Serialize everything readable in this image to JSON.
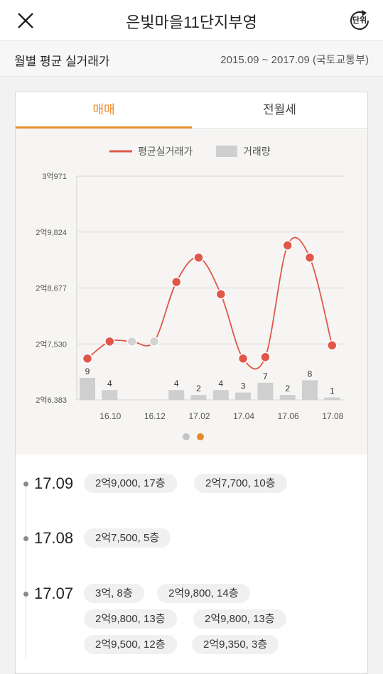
{
  "header": {
    "title": "은빛마을11단지부영",
    "unit_label": "단위"
  },
  "subheader": {
    "title": "월별 평균 실거래가",
    "range": "2015.09 ~ 2017.09 (국토교통부)"
  },
  "tabs": [
    {
      "label": "매매",
      "active": true
    },
    {
      "label": "전월세",
      "active": false
    }
  ],
  "colors": {
    "accent": "#e98a2b",
    "line": "#e0574a",
    "bar": "#cfcfcf",
    "inactive_point": "#d3d3d3"
  },
  "chart_data": {
    "type": "line",
    "legend": [
      {
        "name": "평균실거래가",
        "kind": "line"
      },
      {
        "name": "거래량",
        "kind": "bar"
      }
    ],
    "y_ticks": [
      "3억971",
      "2억9,824",
      "2억8,677",
      "2억7,530",
      "2억6,383"
    ],
    "y_tick_values": [
      30971,
      29824,
      28677,
      27530,
      26383
    ],
    "ylim": [
      26383,
      30971
    ],
    "x_ticks": [
      "16.10",
      "16.12",
      "17.02",
      "17.04",
      "17.06",
      "17.08"
    ],
    "points": [
      {
        "x": "16.09",
        "price": 27230,
        "volume": 9,
        "active": true
      },
      {
        "x": "16.10",
        "price": 27580,
        "volume": 4,
        "active": true
      },
      {
        "x": "16.11",
        "price": 27580,
        "volume": null,
        "active": false
      },
      {
        "x": "16.12",
        "price": 27580,
        "volume": null,
        "active": false
      },
      {
        "x": "17.01",
        "price": 28800,
        "volume": 4,
        "active": true
      },
      {
        "x": "17.02",
        "price": 29300,
        "volume": 2,
        "active": true
      },
      {
        "x": "17.03",
        "price": 28550,
        "volume": 4,
        "active": true
      },
      {
        "x": "17.04",
        "price": 27230,
        "volume": 3,
        "active": true
      },
      {
        "x": "17.05",
        "price": 27260,
        "volume": 7,
        "active": true
      },
      {
        "x": "17.06",
        "price": 29550,
        "volume": 2,
        "active": true
      },
      {
        "x": "17.07",
        "price": 29300,
        "volume": 8,
        "active": true
      },
      {
        "x": "17.08",
        "price": 27500,
        "volume": 1,
        "active": true
      }
    ],
    "page_dots": [
      {
        "active": false
      },
      {
        "active": true
      }
    ]
  },
  "transactions": [
    {
      "date": "17.09",
      "deals": [
        "2억9,000, 17층",
        "2억7,700, 10층"
      ]
    },
    {
      "date": "17.08",
      "deals": [
        "2억7,500, 5층"
      ]
    },
    {
      "date": "17.07",
      "deals": [
        "3억, 8층",
        "2억9,800, 14층",
        "2억9,800, 13층",
        "2억9,800, 13층",
        "2억9,500, 12층",
        "2억9,350, 3층"
      ]
    }
  ]
}
